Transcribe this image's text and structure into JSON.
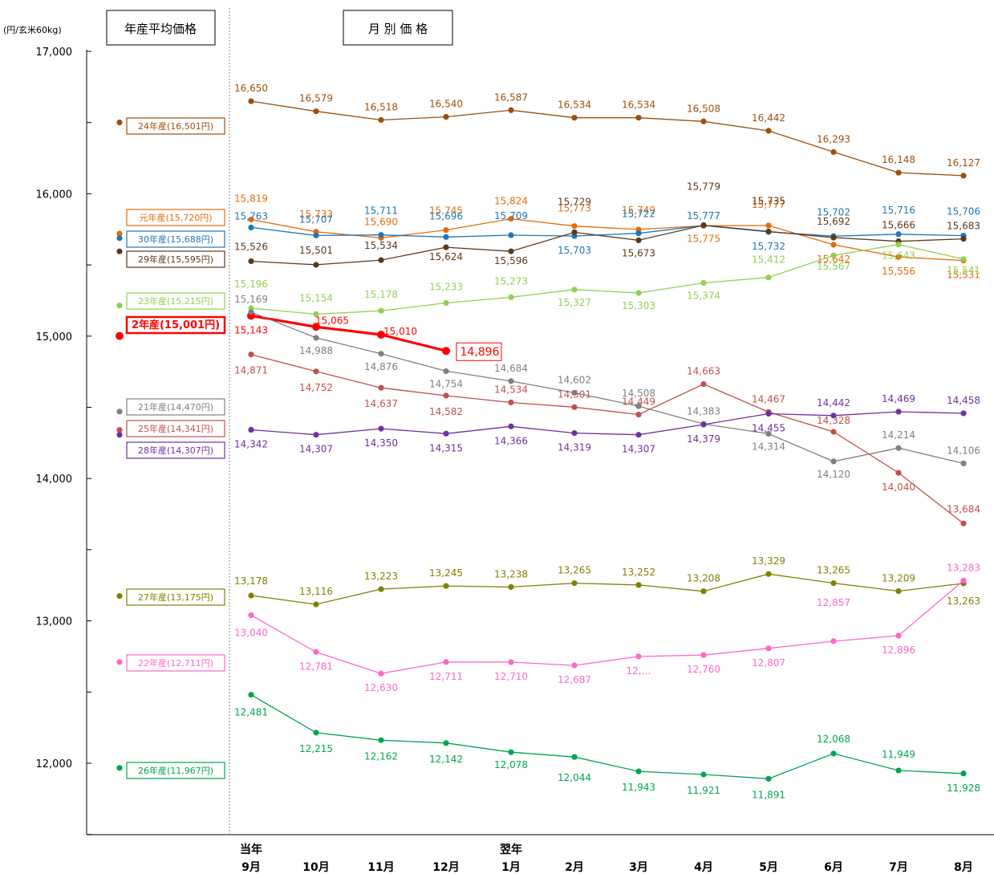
{
  "chart_data": {
    "type": "line",
    "unit_label": "(円/玄米60kg)",
    "annual_header": "年産平均価格",
    "monthly_header": "月 別 価 格",
    "y_ticks": [
      12000,
      13000,
      14000,
      15000,
      16000,
      17000
    ],
    "y_tick_labels": [
      "12,000",
      "13,000",
      "14,000",
      "15,000",
      "16,000",
      "17,000"
    ],
    "ylim": [
      11500,
      17000
    ],
    "x_labels": [
      [
        "当年",
        "9月"
      ],
      [
        "",
        "10月"
      ],
      [
        "",
        "11月"
      ],
      [
        "",
        "12月"
      ],
      [
        "翌年",
        "1月"
      ],
      [
        "",
        "2月"
      ],
      [
        "",
        "3月"
      ],
      [
        "",
        "4月"
      ],
      [
        "",
        "5月"
      ],
      [
        "",
        "6月"
      ],
      [
        "",
        "7月"
      ],
      [
        "",
        "8月"
      ]
    ],
    "series": [
      {
        "name": "24年産(16,501円)",
        "annual": 16501,
        "color": "#9C4F0E",
        "values": [
          16650,
          16579,
          16518,
          16540,
          16587,
          16534,
          16534,
          16508,
          16442,
          16293,
          16148,
          16127
        ],
        "labels": [
          "16,650",
          "16,579",
          "16,518",
          "16,540",
          "16,587",
          "16,534",
          "16,534",
          "16,508",
          "16,442",
          "16,293",
          "16,148",
          "16,127"
        ]
      },
      {
        "name": "元年産(15,720円)",
        "annual": 15720,
        "color": "#E46C0A",
        "values": [
          15819,
          15733,
          15690,
          15745,
          15824,
          15773,
          15749,
          15775,
          15777,
          15642,
          15556,
          15531
        ],
        "labels": [
          "15,819",
          "15,733",
          "15,690",
          "15,745",
          "15,824",
          "15,773",
          "15,749",
          "15,775",
          "15,777",
          "15,642",
          "15,556",
          "15,531"
        ]
      },
      {
        "name": "30年産(15,688円)",
        "annual": 15688,
        "color": "#1F77B4",
        "values": [
          15763,
          15707,
          15711,
          15696,
          15709,
          15703,
          15722,
          15777,
          15732,
          15702,
          15716,
          15706
        ],
        "labels": [
          "15,763",
          "15,707",
          "15,711",
          "15,696",
          "15,709",
          "15,703",
          "15,722",
          "15,777",
          "15,732",
          "15,702",
          "15,716",
          "15,706"
        ]
      },
      {
        "name": "29年産(15,595円)",
        "annual": 15595,
        "color": "#5B3A1A",
        "values": [
          15526,
          15501,
          15534,
          15624,
          15596,
          15729,
          15673,
          15779,
          15735,
          15692,
          15666,
          15683
        ],
        "labels": [
          "15,526",
          "15,501",
          "15,534",
          "15,624",
          "15,596",
          "15,729",
          "15,673",
          "15,779",
          "15,735",
          "15,692",
          "15,666",
          "15,683"
        ]
      },
      {
        "name": "23年産(15,215円)",
        "annual": 15215,
        "color": "#92D050",
        "values": [
          15196,
          15154,
          15178,
          15233,
          15273,
          15327,
          15303,
          15374,
          15412,
          15567,
          15643,
          15541
        ],
        "labels": [
          "15,196",
          "15,154",
          "15,178",
          "15,233",
          "15,273",
          "15,327",
          "15,303",
          "15,374",
          "15,412",
          "15,567",
          "15,643",
          "15,541"
        ]
      },
      {
        "name": "2年産(15,001円)",
        "annual": 15001,
        "color": "#FF0000",
        "highlight": true,
        "values": [
          15143,
          15065,
          15010,
          14896
        ],
        "labels": [
          "15,143",
          "15,065",
          "15,010",
          "14,896"
        ]
      },
      {
        "name": "21年産(14,470円)",
        "annual": 14470,
        "color": "#808080",
        "values": [
          15169,
          14988,
          14876,
          14754,
          14684,
          14602,
          14508,
          14383,
          14314,
          14120,
          14214,
          14106
        ],
        "labels": [
          "15,169",
          "14,988",
          "14,876",
          "14,754",
          "14,684",
          "14,602",
          "14,508",
          "14,383",
          "14,314",
          "14,120",
          "14,214",
          "14,106"
        ]
      },
      {
        "name": "25年産(14,341円)",
        "annual": 14341,
        "color": "#C0504D",
        "values": [
          14871,
          14752,
          14637,
          14582,
          14534,
          14501,
          14449,
          14663,
          14467,
          14328,
          14040,
          13684
        ],
        "labels": [
          "14,871",
          "14,752",
          "14,637",
          "14,582",
          "14,534",
          "14,501",
          "14,449",
          "14,663",
          "14,467",
          "14,328",
          "14,040",
          "13,684"
        ]
      },
      {
        "name": "28年産(14,307円)",
        "annual": 14307,
        "color": "#7030A0",
        "values": [
          14342,
          14307,
          14350,
          14315,
          14366,
          14319,
          14307,
          14379,
          14455,
          14442,
          14469,
          14458
        ],
        "labels": [
          "14,342",
          "14,307",
          "14,350",
          "14,315",
          "14,366",
          "14,319",
          "14,307",
          "14,379",
          "14,455",
          "14,442",
          "14,469",
          "14,458"
        ]
      },
      {
        "name": "27年産(13,175円)",
        "annual": 13175,
        "color": "#808000",
        "values": [
          13178,
          13116,
          13223,
          13245,
          13238,
          13265,
          13252,
          13208,
          13329,
          13265,
          13209,
          13263
        ],
        "labels": [
          "13,178",
          "13,116",
          "13,223",
          "13,245",
          "13,238",
          "13,265",
          "13,252",
          "13,208",
          "13,329",
          "13,265",
          "13,209",
          "13,263"
        ]
      },
      {
        "name": "22年産(12,711円)",
        "annual": 12711,
        "color": "#FF66CC",
        "values": [
          13040,
          12781,
          12630,
          12711,
          12710,
          12687,
          12750,
          12760,
          12807,
          12857,
          12896,
          13283
        ],
        "labels": [
          "13,040",
          "12,781",
          "12,630",
          "12,711",
          "12,710",
          "12,687",
          "12,…",
          "12,760",
          "12,807",
          "12,857",
          "12,896",
          "13,283"
        ]
      },
      {
        "name": "26年産(11,967円)",
        "annual": 11967,
        "color": "#00A550",
        "values": [
          12481,
          12215,
          12162,
          12142,
          12078,
          12044,
          11943,
          11921,
          11891,
          12068,
          11949,
          11928
        ],
        "labels": [
          "12,481",
          "12,215",
          "12,162",
          "12,142",
          "12,078",
          "12,044",
          "11,943",
          "11,921",
          "11,891",
          "12,068",
          "11,949",
          "11,928"
        ]
      }
    ]
  }
}
